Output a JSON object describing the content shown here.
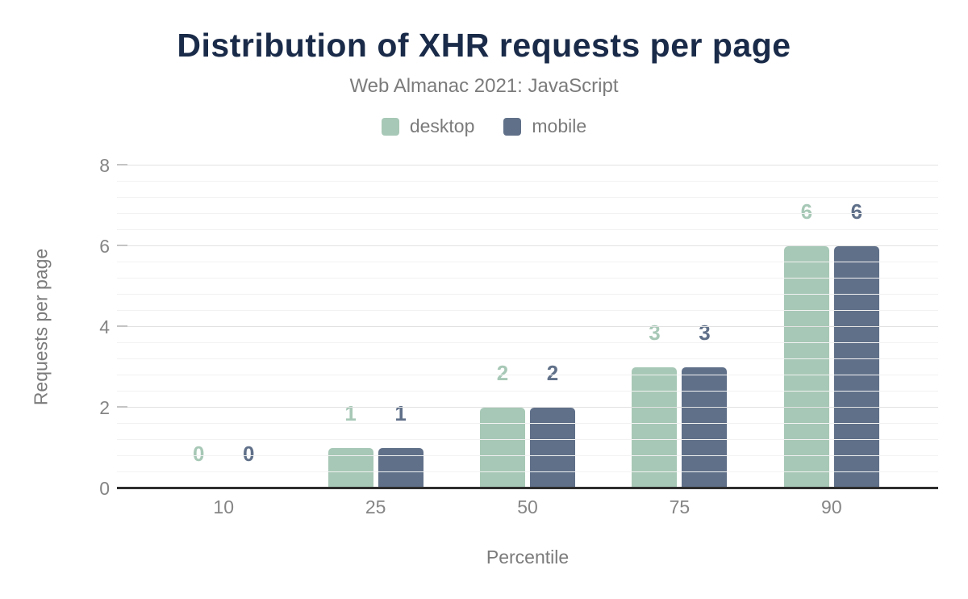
{
  "header": {
    "title": "Distribution of XHR requests per page",
    "subtitle": "Web Almanac 2021: JavaScript"
  },
  "legend": [
    {
      "label": "desktop",
      "color": "#a7c8b6"
    },
    {
      "label": "mobile",
      "color": "#607089"
    }
  ],
  "chart_data": {
    "type": "bar",
    "title": "Distribution of XHR requests per page",
    "subtitle": "Web Almanac 2021: JavaScript",
    "categories": [
      "10",
      "25",
      "50",
      "75",
      "90"
    ],
    "series": [
      {
        "name": "desktop",
        "color": "#a7c8b6",
        "values": [
          0,
          1,
          2,
          3,
          6
        ]
      },
      {
        "name": "mobile",
        "color": "#607089",
        "values": [
          0,
          1,
          2,
          3,
          6
        ]
      }
    ],
    "xlabel": "Percentile",
    "ylabel": "Requests per page",
    "ylim": [
      0,
      8
    ],
    "yticks": [
      0,
      2,
      4,
      6,
      8
    ],
    "minor_grid_step": 0.4,
    "grid": true,
    "legend_position": "top",
    "value_labels": true
  },
  "colors": {
    "title_text": "#1a2b49",
    "muted_text": "#7b7b7b",
    "tick_text": "#858585",
    "major_grid": "#e2e2e2",
    "minor_grid": "#f2f2f2",
    "tick_mark": "#c4c4c4",
    "axis_line": "#2e2e2e",
    "background": "#ffffff"
  }
}
